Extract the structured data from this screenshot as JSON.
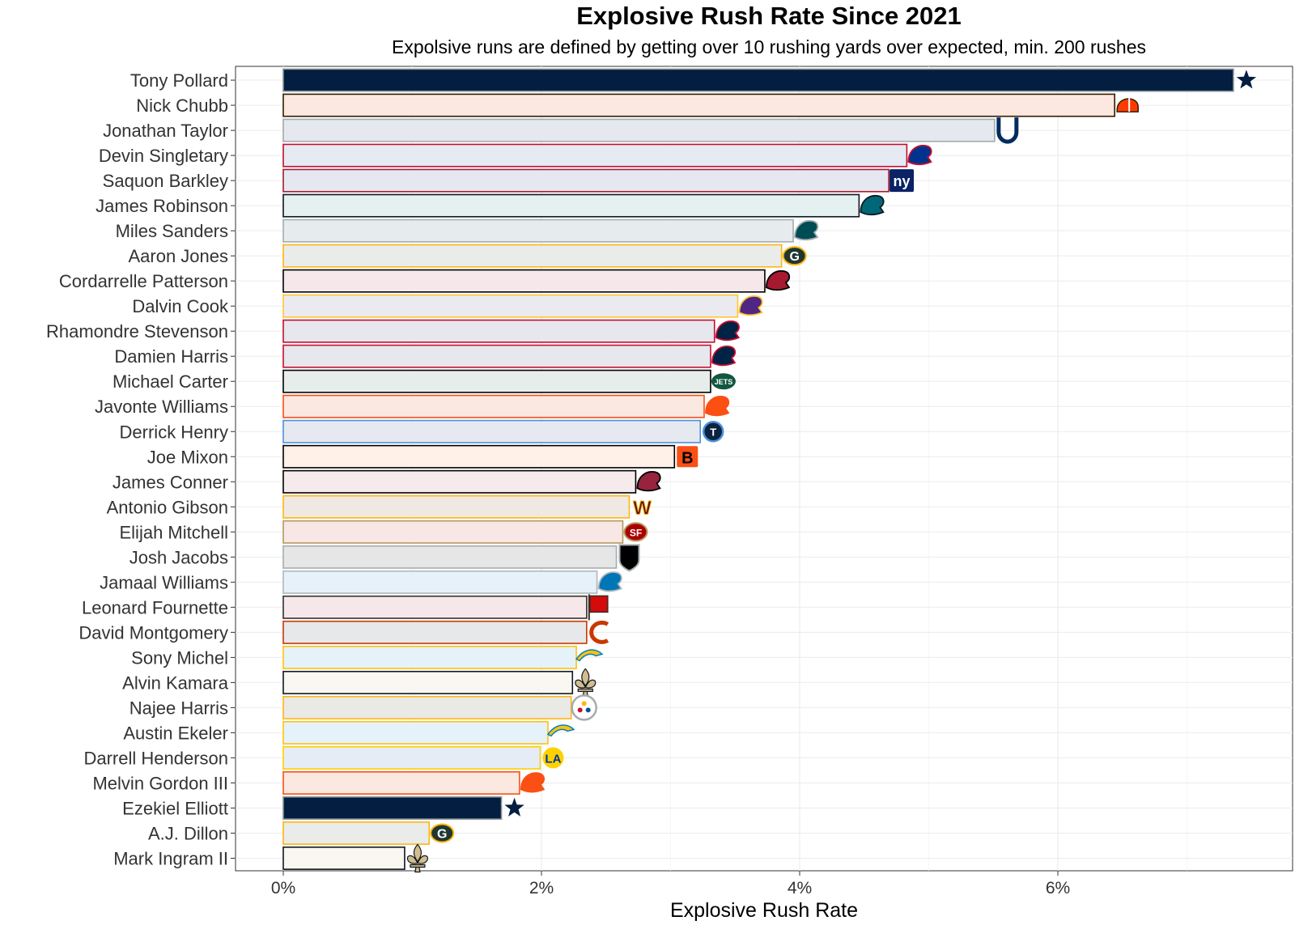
{
  "chart_data": {
    "type": "bar",
    "orientation": "horizontal",
    "title": "Explosive Rush Rate Since 2021",
    "subtitle": "Expolsive runs are defined by getting over 10 rushing yards over expected, min. 200 rushes",
    "xlabel": "Explosive Rush Rate",
    "ylabel": "",
    "xlim": [
      -0.0037,
      0.0782
    ],
    "x_ticks": [
      0,
      0.02,
      0.04,
      0.06
    ],
    "x_tick_labels": [
      "0%",
      "2%",
      "4%",
      "6%"
    ],
    "grid": true,
    "legend": "none",
    "categories": [
      "Tony Pollard",
      "Nick Chubb",
      "Jonathan Taylor",
      "Devin Singletary",
      "Saquon Barkley",
      "James Robinson",
      "Miles Sanders",
      "Aaron Jones",
      "Cordarrelle Patterson",
      "Dalvin Cook",
      "Rhamondre Stevenson",
      "Damien Harris",
      "Michael Carter",
      "Javonte Williams",
      "Derrick Henry",
      "Joe Mixon",
      "James Conner",
      "Antonio Gibson",
      "Elijah Mitchell",
      "Josh Jacobs",
      "Jamaal Williams",
      "Leonard Fournette",
      "David Montgomery",
      "Sony Michel",
      "Alvin Kamara",
      "Najee Harris",
      "Austin Ekeler",
      "Darrell Henderson",
      "Melvin Gordon III",
      "Ezekiel Elliott",
      "A.J. Dillon",
      "Mark Ingram II"
    ],
    "values": [
      0.0736,
      0.0644,
      0.0551,
      0.0483,
      0.0469,
      0.0446,
      0.0395,
      0.0386,
      0.0373,
      0.0352,
      0.0334,
      0.0331,
      0.0331,
      0.0326,
      0.0323,
      0.0303,
      0.0273,
      0.0268,
      0.0263,
      0.0258,
      0.0243,
      0.0235,
      0.0235,
      0.0227,
      0.0224,
      0.0223,
      0.0205,
      0.0199,
      0.0183,
      0.0169,
      0.0113,
      0.0094
    ],
    "teams": [
      "DAL",
      "CLE",
      "IND",
      "BUF",
      "NYG",
      "JAX",
      "PHI",
      "GB",
      "ATL",
      "MIN",
      "NE",
      "NE",
      "NYJ",
      "DEN",
      "TEN",
      "CIN",
      "ARI",
      "WAS",
      "SF",
      "LV",
      "DET",
      "TB",
      "CHI",
      "LAC",
      "NO",
      "PIT",
      "LAC",
      "LAR",
      "DEN",
      "DAL",
      "GB",
      "NO"
    ],
    "team_colors": {
      "DAL": {
        "fill": "#041e42",
        "stroke": "#869397"
      },
      "CLE": {
        "fill": "#fde8e1",
        "stroke": "#311d00"
      },
      "IND": {
        "fill": "#e5e8ee",
        "stroke": "#a2aaad"
      },
      "BUF": {
        "fill": "#e6eaf2",
        "stroke": "#c60c30"
      },
      "NYG": {
        "fill": "#e6e8f1",
        "stroke": "#a71930"
      },
      "JAX": {
        "fill": "#e5f1f1",
        "stroke": "#101820"
      },
      "PHI": {
        "fill": "#e6eced",
        "stroke": "#a5acaf"
      },
      "GB": {
        "fill": "#e9ece9",
        "stroke": "#ffb612"
      },
      "ATL": {
        "fill": "#f6e7ea",
        "stroke": "#000000"
      },
      "MIN": {
        "fill": "#eceaf1",
        "stroke": "#ffc62f"
      },
      "NE": {
        "fill": "#e6e8ee",
        "stroke": "#c60c30"
      },
      "NYJ": {
        "fill": "#e7edea",
        "stroke": "#000000"
      },
      "DEN": {
        "fill": "#fbe9e1",
        "stroke": "#fb4f14"
      },
      "TEN": {
        "fill": "#e6eaf0",
        "stroke": "#4b92db"
      },
      "CIN": {
        "fill": "#fff0e8",
        "stroke": "#000000"
      },
      "ARI": {
        "fill": "#f7eaec",
        "stroke": "#000000"
      },
      "WAS": {
        "fill": "#f0e8e3",
        "stroke": "#ffb612"
      },
      "SF": {
        "fill": "#f8e7e5",
        "stroke": "#b3995d"
      },
      "LV": {
        "fill": "#e6e6e6",
        "stroke": "#a5acaf"
      },
      "DET": {
        "fill": "#e6f1f9",
        "stroke": "#b0b7bc"
      },
      "TB": {
        "fill": "#f6e8ea",
        "stroke": "#34302b"
      },
      "CHI": {
        "fill": "#e7e8ea",
        "stroke": "#c83803"
      },
      "LAC": {
        "fill": "#e6f2f9",
        "stroke": "#ffc20e"
      },
      "LAR": {
        "fill": "#e6ecf5",
        "stroke": "#ffd100"
      },
      "NO": {
        "fill": "#faf7f2",
        "stroke": "#101820"
      },
      "PIT": {
        "fill": "#e9e9e6",
        "stroke": "#ffb612"
      }
    },
    "logo_icons": {
      "DAL": "cowboys-star-icon",
      "CLE": "browns-helmet-icon",
      "IND": "colts-horseshoe-icon",
      "BUF": "bills-buffalo-icon",
      "NYG": "giants-ny-icon",
      "JAX": "jaguars-head-icon",
      "PHI": "eagles-head-icon",
      "GB": "packers-g-icon",
      "ATL": "falcons-icon",
      "MIN": "vikings-icon",
      "NE": "patriots-icon",
      "NYJ": "jets-icon",
      "DEN": "broncos-icon",
      "TEN": "titans-icon",
      "CIN": "bengals-b-icon",
      "ARI": "cardinals-head-icon",
      "WAS": "commanders-w-icon",
      "SF": "49ers-sf-icon",
      "LV": "raiders-shield-icon",
      "DET": "lions-icon",
      "TB": "buccaneers-flag-icon",
      "CHI": "bears-c-icon",
      "LAC": "chargers-bolt-icon",
      "LAR": "rams-la-icon",
      "NO": "saints-fleur-de-lis-icon",
      "PIT": "steelers-icon"
    }
  }
}
